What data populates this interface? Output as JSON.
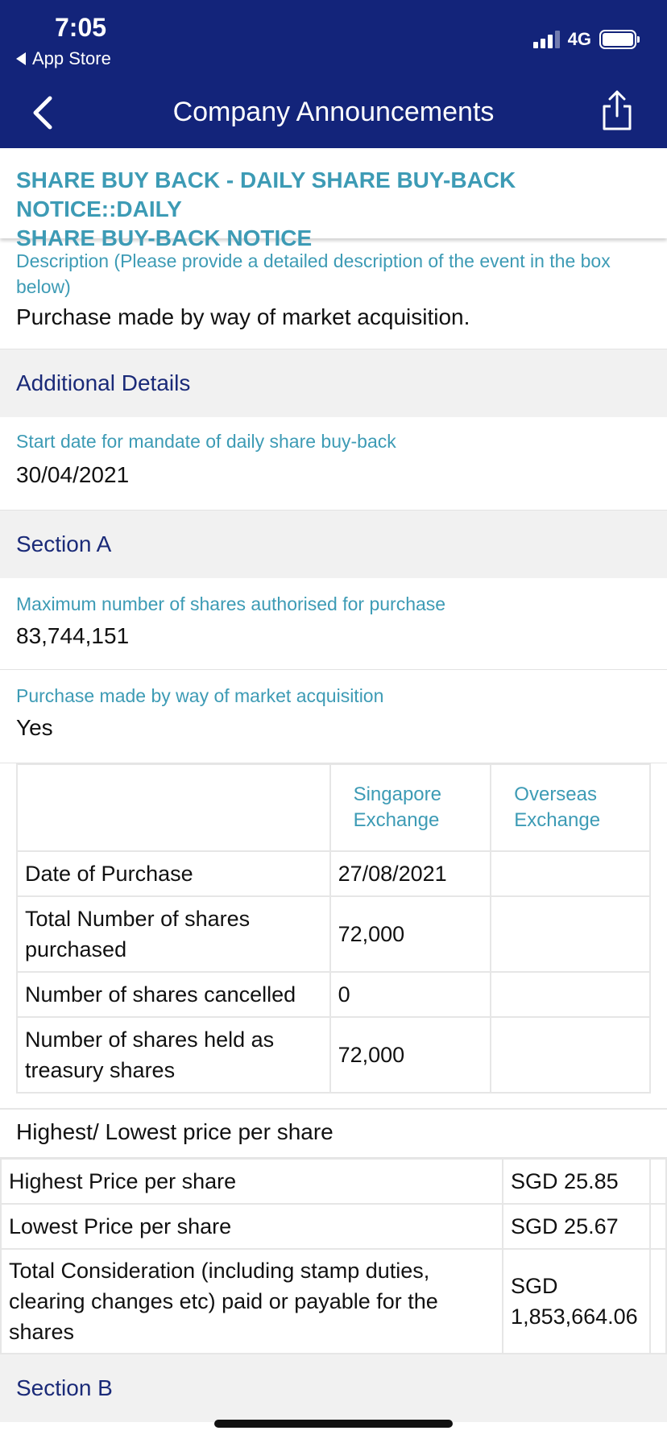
{
  "status_bar": {
    "time": "7:05",
    "back_app": "App Store",
    "network": "4G"
  },
  "nav": {
    "title": "Company Announcements"
  },
  "headline": {
    "line1": "SHARE BUY BACK - DAILY SHARE BUY-BACK NOTICE::DAILY",
    "line2": "SHARE BUY-BACK NOTICE"
  },
  "description": {
    "label_line1": "Description (Please provide a detailed description of the event in the box",
    "label_line2": "below)",
    "value": "Purchase made by way of market acquisition."
  },
  "sections": {
    "additional": "Additional Details",
    "a": "Section A",
    "b": "Section B"
  },
  "start_date": {
    "label": "Start date for mandate of daily share buy-back",
    "value": "30/04/2021"
  },
  "max_shares": {
    "label": "Maximum number of shares authorised for purchase",
    "value": "83,744,151"
  },
  "market_acq": {
    "label": "Purchase made by way of market acquisition",
    "value": "Yes"
  },
  "purchase_table": {
    "header_sg_1": "Singapore",
    "header_sg_2": "Exchange",
    "header_os_1": "Overseas",
    "header_os_2": "Exchange",
    "rows": [
      {
        "label": "Date of Purchase",
        "sg": "27/08/2021",
        "os": ""
      },
      {
        "label_1": "Total Number of shares",
        "label_2": "purchased",
        "sg": "72,000",
        "os": ""
      },
      {
        "label": "Number of shares cancelled",
        "sg": "0",
        "os": ""
      },
      {
        "label_1": "Number of shares held as",
        "label_2": "treasury shares",
        "sg": "72,000",
        "os": ""
      }
    ]
  },
  "price_heading": "Highest/ Lowest price per share",
  "price_table": {
    "rows": [
      {
        "label": "Highest Price per share",
        "value": "SGD 25.85"
      },
      {
        "label": "Lowest Price per share",
        "value": "SGD 25.67"
      },
      {
        "label_1": "Total Consideration (including stamp duties,",
        "label_2": "clearing changes etc) paid or payable for the",
        "label_3": "shares",
        "value_1": "SGD",
        "value_2": "1,853,664.06"
      }
    ]
  },
  "colors": {
    "nav_bg": "#13247a",
    "accent_teal": "#3d9bb5",
    "section_text": "#1a2a78",
    "section_bg": "#f1f1f1"
  },
  "icons": [
    "signal-icon",
    "battery-icon",
    "back-chevron-icon",
    "share-icon",
    "back-triangle-icon"
  ]
}
